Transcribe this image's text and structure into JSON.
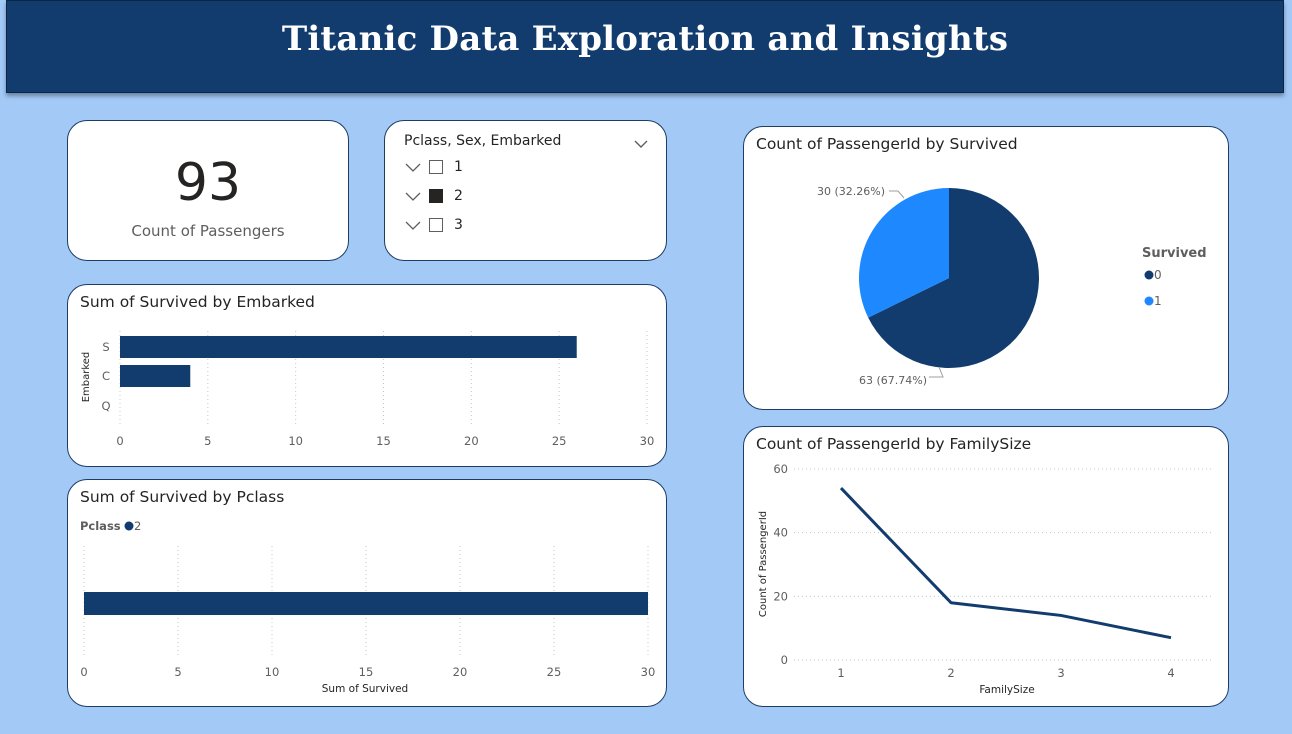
{
  "header": {
    "title": "Titanic Data Exploration and Insights"
  },
  "kpi": {
    "value": "93",
    "label": "Count of Passengers"
  },
  "slicer": {
    "title": "Pclass, Sex, Embarked",
    "items": [
      {
        "label": "1",
        "checked": false
      },
      {
        "label": "2",
        "checked": true
      },
      {
        "label": "3",
        "checked": false
      }
    ]
  },
  "colors": {
    "dark": "#123c6e",
    "light": "#1e88ff",
    "header": "#123c6e",
    "background": "#a3c9f7"
  },
  "icons": {
    "slicer_dropdown": "chevron-down-icon",
    "slicer_expand": "chevron-down-icon"
  },
  "chart_data": [
    {
      "id": "embarked",
      "type": "bar",
      "orientation": "horizontal",
      "title": "Sum of Survived by Embarked",
      "ylabel": "Embarked",
      "xlabel": "",
      "categories": [
        "S",
        "C",
        "Q"
      ],
      "values": [
        26,
        4,
        0
      ],
      "xlim": [
        0,
        30
      ],
      "xticks": [
        "0",
        "5",
        "10",
        "15",
        "20",
        "25",
        "30"
      ],
      "grid": true
    },
    {
      "id": "pclass",
      "type": "bar",
      "orientation": "horizontal",
      "title": "Sum of Survived by Pclass",
      "xlabel": "Sum of Survived",
      "legend_title": "Pclass",
      "legend_position": "top-left",
      "series": [
        {
          "name": "2",
          "values": [
            30
          ]
        }
      ],
      "xlim": [
        0,
        30
      ],
      "xticks": [
        "0",
        "5",
        "10",
        "15",
        "20",
        "25",
        "30"
      ],
      "grid": true
    },
    {
      "id": "survived",
      "type": "pie",
      "title": "Count of PassengerId by Survived",
      "legend_title": "Survived",
      "legend_position": "right",
      "slices": [
        {
          "name": "0",
          "value": 63,
          "label": "63 (67.74%)"
        },
        {
          "name": "1",
          "value": 30,
          "label": "30 (32.26%)"
        }
      ]
    },
    {
      "id": "familysize",
      "type": "line",
      "title": "Count of PassengerId by FamilySize",
      "xlabel": "FamilySize",
      "ylabel": "Count of PassengerId",
      "x": [
        1,
        2,
        3,
        4
      ],
      "y": [
        54,
        18,
        14,
        7
      ],
      "ylim": [
        0,
        60
      ],
      "yticks": [
        "0",
        "20",
        "40",
        "60"
      ],
      "grid": true
    }
  ]
}
